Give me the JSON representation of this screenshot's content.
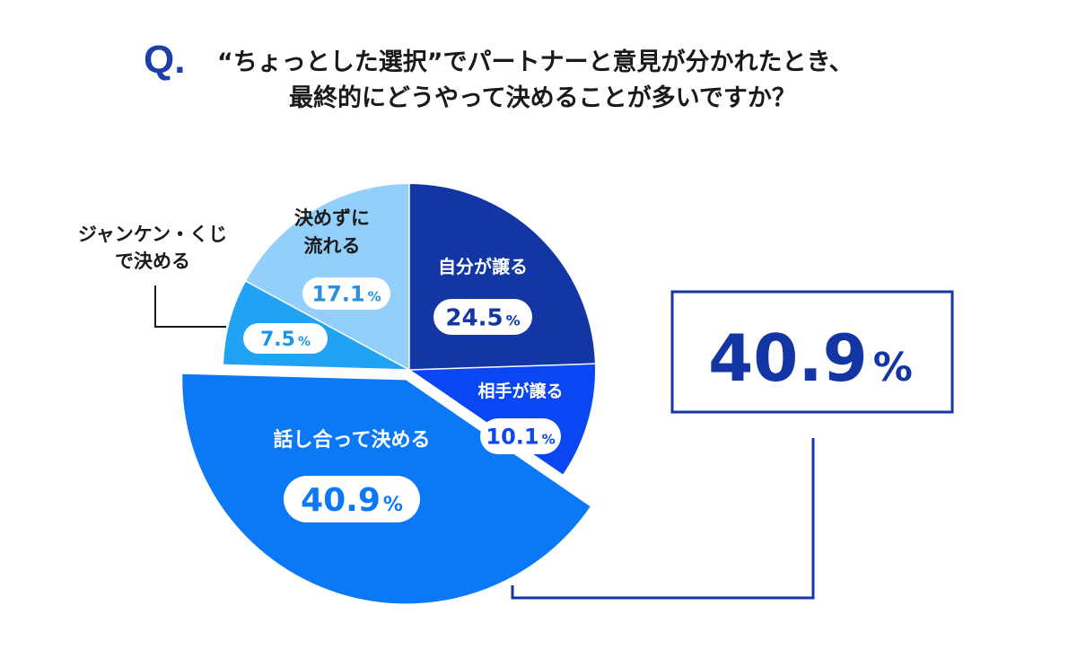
{
  "question": {
    "mark": "Q.",
    "line1": "“ちょっとした選択”でパートナーと意見が分かれたとき、",
    "line2": "最終的にどうやって決めることが多いですか？"
  },
  "chart_data": {
    "type": "pie",
    "unit": "%",
    "slices": [
      {
        "label": "自分が譲る",
        "value": 24.5,
        "value_text": "24.5",
        "color": "#1336a4",
        "exploded": false
      },
      {
        "label": "相手が譲る",
        "value": 10.1,
        "value_text": "10.1",
        "color": "#0a46f2",
        "exploded": false
      },
      {
        "label": "話し合って決める",
        "value": 40.9,
        "value_text": "40.9",
        "color": "#0b78f6",
        "exploded": true
      },
      {
        "label": "ジャンケン・くじで決める",
        "label_lines": [
          "ジャンケン・くじ",
          "で決める"
        ],
        "value": 7.5,
        "value_text": "7.5",
        "color": "#22a2f2",
        "exploded": false,
        "callout": true
      },
      {
        "label": "決めずに流れる",
        "label_lines": [
          "決めずに",
          "流れる"
        ],
        "value": 17.1,
        "value_text": "17.1",
        "color": "#92d0fb",
        "exploded": false
      }
    ],
    "highlight": {
      "value_text": "40.9",
      "unit": "%",
      "color": "#1336a4"
    }
  }
}
